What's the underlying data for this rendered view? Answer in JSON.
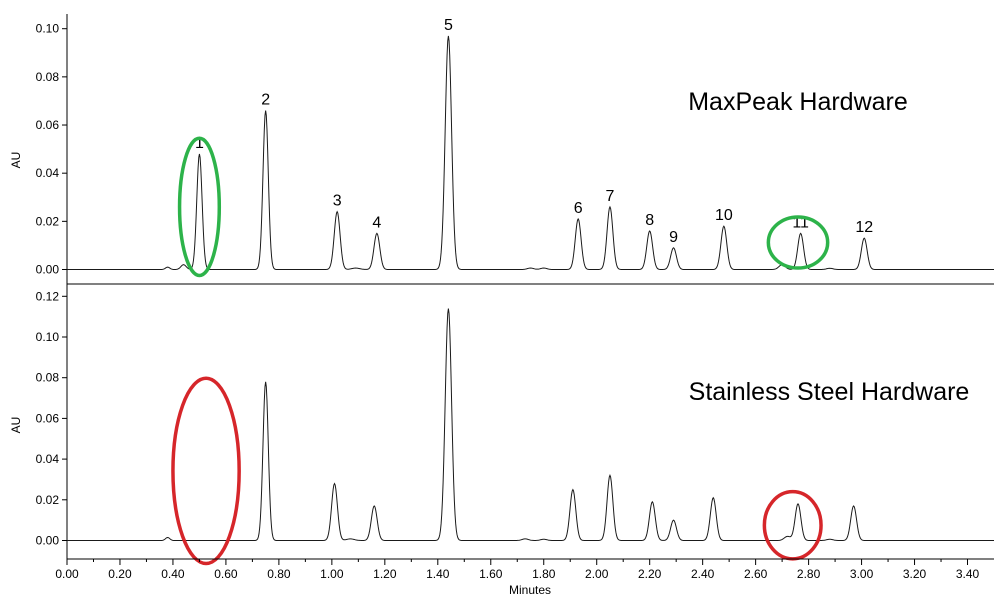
{
  "chart_data": [
    {
      "type": "line",
      "title": "MaxPeak Hardware",
      "ylabel": "AU",
      "xlim": [
        0.0,
        3.5
      ],
      "ylim": [
        -0.004,
        0.102
      ],
      "yticks": [
        "0.00",
        "0.02",
        "0.04",
        "0.06",
        "0.08",
        "0.10"
      ],
      "line_color": "#1a1a1a",
      "peaks": [
        {
          "label": "1",
          "x": 0.5,
          "y": 0.048,
          "w": 0.01
        },
        {
          "label": "2",
          "x": 0.75,
          "y": 0.066,
          "w": 0.01
        },
        {
          "label": "3",
          "x": 1.02,
          "y": 0.024,
          "w": 0.011
        },
        {
          "label": "4",
          "x": 1.17,
          "y": 0.015,
          "w": 0.011
        },
        {
          "label": "5",
          "x": 1.44,
          "y": 0.097,
          "w": 0.012
        },
        {
          "label": "6",
          "x": 1.93,
          "y": 0.021,
          "w": 0.011
        },
        {
          "label": "7",
          "x": 2.05,
          "y": 0.026,
          "w": 0.011
        },
        {
          "label": "8",
          "x": 2.2,
          "y": 0.016,
          "w": 0.011
        },
        {
          "label": "9",
          "x": 2.29,
          "y": 0.009,
          "w": 0.011
        },
        {
          "label": "10",
          "x": 2.48,
          "y": 0.018,
          "w": 0.011
        },
        {
          "label": "11",
          "x": 2.77,
          "y": 0.015,
          "w": 0.011
        },
        {
          "label": "12",
          "x": 3.01,
          "y": 0.013,
          "w": 0.011
        }
      ],
      "minor_features": [
        {
          "x": 0.38,
          "y": 0.001,
          "w": 0.008
        },
        {
          "x": 0.44,
          "y": 0.002,
          "w": 0.01
        },
        {
          "x": 1.09,
          "y": 0.0006,
          "w": 0.015
        },
        {
          "x": 1.75,
          "y": 0.0006,
          "w": 0.012
        },
        {
          "x": 1.8,
          "y": 0.0006,
          "w": 0.012
        },
        {
          "x": 2.7,
          "y": 0.002,
          "w": 0.012
        },
        {
          "x": 2.88,
          "y": 0.0005,
          "w": 0.012
        }
      ],
      "highlights": [
        {
          "x": 0.5,
          "y": 0.026,
          "rx": 0.075,
          "ry": 0.0285,
          "color": "#2db34a"
        },
        {
          "x": 2.76,
          "y": 0.0112,
          "rx": 0.112,
          "ry": 0.0106,
          "color": "#2db34a"
        }
      ]
    },
    {
      "type": "line",
      "title": "Stainless Steel Hardware",
      "ylabel": "AU",
      "xlabel": "Minutes",
      "xlim": [
        0.0,
        3.5
      ],
      "ylim": [
        -0.009,
        0.1225
      ],
      "xticks": [
        "0.00",
        "0.20",
        "0.40",
        "0.60",
        "0.80",
        "1.00",
        "1.20",
        "1.40",
        "1.60",
        "1.80",
        "2.00",
        "2.20",
        "2.40",
        "2.60",
        "2.80",
        "3.00",
        "3.20",
        "3.40"
      ],
      "yticks": [
        "0.00",
        "0.02",
        "0.04",
        "0.06",
        "0.08",
        "0.10",
        "0.12"
      ],
      "line_color": "#1a1a1a",
      "peaks": [
        {
          "x": 0.75,
          "y": 0.078,
          "w": 0.01
        },
        {
          "x": 1.01,
          "y": 0.028,
          "w": 0.011
        },
        {
          "x": 1.16,
          "y": 0.017,
          "w": 0.011
        },
        {
          "x": 1.44,
          "y": 0.114,
          "w": 0.012
        },
        {
          "x": 1.91,
          "y": 0.025,
          "w": 0.011
        },
        {
          "x": 2.05,
          "y": 0.032,
          "w": 0.011
        },
        {
          "x": 2.21,
          "y": 0.019,
          "w": 0.011
        },
        {
          "x": 2.29,
          "y": 0.01,
          "w": 0.011
        },
        {
          "x": 2.44,
          "y": 0.021,
          "w": 0.011
        },
        {
          "x": 2.76,
          "y": 0.018,
          "w": 0.011
        },
        {
          "x": 2.97,
          "y": 0.017,
          "w": 0.011
        }
      ],
      "minor_features": [
        {
          "x": 0.38,
          "y": 0.0015,
          "w": 0.008
        },
        {
          "x": 1.07,
          "y": 0.0008,
          "w": 0.015
        },
        {
          "x": 1.73,
          "y": 0.0008,
          "w": 0.012
        },
        {
          "x": 1.8,
          "y": 0.0006,
          "w": 0.012
        },
        {
          "x": 2.72,
          "y": 0.002,
          "w": 0.012
        },
        {
          "x": 2.88,
          "y": 0.0006,
          "w": 0.012
        }
      ],
      "highlights": [
        {
          "x": 0.525,
          "y": 0.0342,
          "rx": 0.125,
          "ry": 0.0455,
          "color": "#d6262a"
        },
        {
          "x": 2.74,
          "y": 0.0075,
          "rx": 0.107,
          "ry": 0.0165,
          "color": "#d6262a"
        }
      ]
    }
  ]
}
